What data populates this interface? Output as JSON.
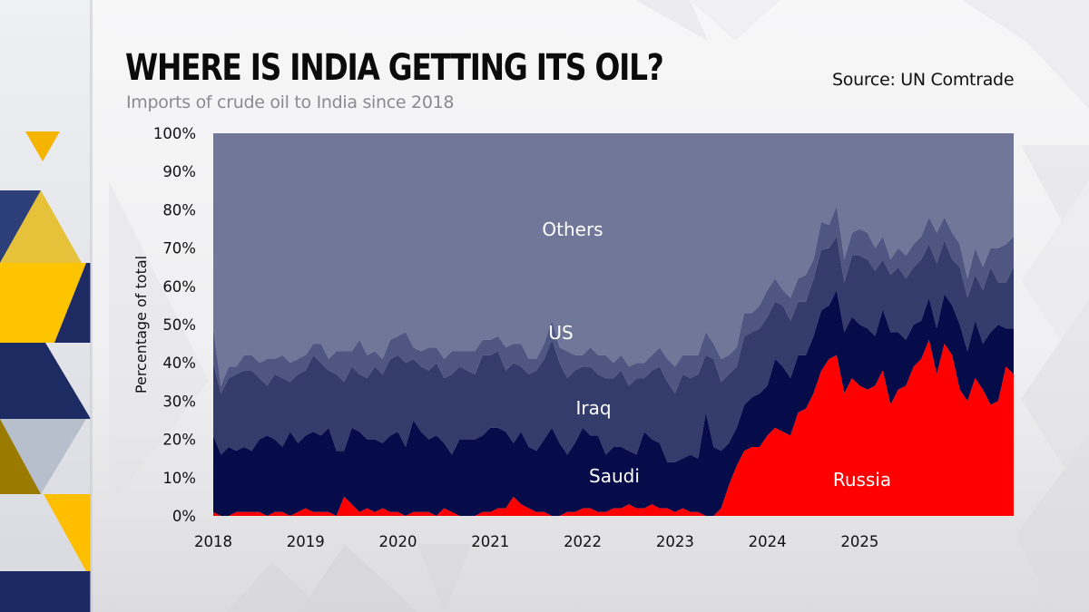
{
  "header": {
    "title": "WHERE IS INDIA GETTING ITS OIL?",
    "subtitle": "Imports of crude oil to India since 2018",
    "source": "Source: UN Comtrade"
  },
  "colors": {
    "Russia": "#ff0000",
    "Saudi": "#060c4a",
    "Iraq": "#343c6c",
    "US": "#4f5682",
    "Others": "#717799",
    "accent_yellow": "#f5b800",
    "accent_navy": "#1c2a60"
  },
  "chart_data": {
    "type": "area",
    "stacked": true,
    "title": "WHERE IS INDIA GETTING ITS OIL?",
    "subtitle": "Imports of crude oil to India since 2018",
    "xlabel": "",
    "ylabel": "Percentage of total",
    "ylim": [
      0,
      100
    ],
    "y_ticks": [
      "0%",
      "10%",
      "20%",
      "30%",
      "40%",
      "50%",
      "60%",
      "70%",
      "80%",
      "90%",
      "100%"
    ],
    "x_ticks": [
      "2018",
      "2019",
      "2020",
      "2021",
      "2022",
      "2023",
      "2024",
      "2025"
    ],
    "x_start": "2018-01",
    "x_end": "2025-06",
    "grid": false,
    "legend": "inline-labels",
    "series_order_bottom_to_top": [
      "Russia",
      "Saudi",
      "Iraq",
      "US",
      "Others"
    ],
    "series": [
      {
        "name": "Russia",
        "values": [
          1,
          0,
          0,
          1,
          1,
          1,
          1,
          0,
          1,
          1,
          0,
          1,
          2,
          1,
          1,
          1,
          0,
          5,
          3,
          1,
          2,
          1,
          2,
          1,
          1,
          0,
          1,
          1,
          1,
          0,
          2,
          1,
          0,
          0,
          0,
          1,
          1,
          2,
          2,
          5,
          3,
          2,
          1,
          1,
          0,
          0,
          1,
          1,
          2,
          2,
          1,
          1,
          2,
          2,
          3,
          2,
          2,
          3,
          2,
          2,
          1,
          2,
          1,
          1,
          0,
          0,
          2,
          8,
          13,
          17,
          18,
          18,
          21,
          23,
          22,
          21,
          27,
          28,
          32,
          36,
          41,
          42,
          32,
          36,
          34,
          33,
          34,
          38,
          29,
          33,
          34,
          39,
          41,
          46,
          37,
          45,
          42,
          33,
          30,
          36,
          33,
          29,
          30,
          39,
          37
        ]
      },
      {
        "name": "Saudi",
        "values": [
          20,
          16,
          18,
          16,
          17,
          16,
          19,
          21,
          19,
          17,
          22,
          18,
          19,
          21,
          20,
          22,
          17,
          12,
          20,
          21,
          18,
          19,
          17,
          20,
          21,
          18,
          24,
          21,
          19,
          21,
          17,
          15,
          20,
          20,
          20,
          20,
          22,
          21,
          20,
          14,
          19,
          16,
          16,
          19,
          23,
          19,
          15,
          18,
          21,
          19,
          20,
          15,
          16,
          16,
          14,
          14,
          20,
          17,
          17,
          12,
          13,
          13,
          15,
          14,
          27,
          18,
          15,
          11,
          10,
          12,
          13,
          14,
          13,
          18,
          17,
          15,
          15,
          14,
          15,
          15,
          14,
          17,
          16,
          16,
          16,
          16,
          13,
          16,
          19,
          15,
          12,
          11,
          10,
          11,
          12,
          13,
          13,
          17,
          13,
          15,
          12,
          19,
          20,
          10,
          12
        ]
      },
      {
        "name": "Iraq",
        "values": [
          19,
          16,
          18,
          20,
          20,
          21,
          16,
          13,
          17,
          18,
          13,
          18,
          17,
          20,
          19,
          15,
          20,
          18,
          16,
          15,
          16,
          19,
          18,
          20,
          20,
          22,
          16,
          17,
          18,
          19,
          17,
          21,
          19,
          18,
          17,
          21,
          19,
          20,
          16,
          21,
          17,
          19,
          21,
          21,
          23,
          21,
          20,
          19,
          16,
          18,
          16,
          20,
          18,
          20,
          17,
          20,
          14,
          18,
          20,
          21,
          18,
          22,
          20,
          22,
          15,
          23,
          18,
          18,
          16,
          18,
          17,
          17,
          18,
          15,
          16,
          15,
          14,
          14,
          15,
          15,
          15,
          14,
          13,
          16,
          18,
          18,
          17,
          13,
          15,
          17,
          16,
          15,
          16,
          14,
          17,
          14,
          12,
          15,
          14,
          12,
          14,
          17,
          11,
          12,
          16
        ]
      },
      {
        "name": "US",
        "values": [
          9,
          2,
          3,
          2,
          4,
          4,
          4,
          7,
          4,
          6,
          5,
          4,
          4,
          3,
          5,
          3,
          6,
          8,
          4,
          9,
          6,
          4,
          4,
          5,
          5,
          8,
          3,
          4,
          6,
          4,
          5,
          6,
          4,
          5,
          6,
          4,
          4,
          4,
          6,
          5,
          6,
          4,
          3,
          4,
          5,
          4,
          7,
          4,
          3,
          5,
          5,
          6,
          4,
          4,
          5,
          4,
          4,
          4,
          5,
          6,
          7,
          5,
          6,
          5,
          6,
          4,
          6,
          5,
          5,
          6,
          5,
          6,
          7,
          6,
          4,
          6,
          6,
          7,
          5,
          7,
          6,
          8,
          6,
          6,
          7,
          7,
          6,
          6,
          4,
          5,
          6,
          6,
          6,
          7,
          8,
          6,
          7,
          6,
          5,
          7,
          6,
          5,
          9,
          10,
          8
        ]
      },
      {
        "name": "Others",
        "values": [
          51,
          66,
          61,
          61,
          58,
          58,
          60,
          59,
          59,
          58,
          60,
          59,
          58,
          55,
          55,
          59,
          57,
          57,
          57,
          54,
          58,
          57,
          59,
          54,
          53,
          52,
          56,
          57,
          56,
          56,
          59,
          57,
          57,
          57,
          57,
          54,
          54,
          53,
          56,
          55,
          55,
          59,
          59,
          55,
          49,
          56,
          57,
          58,
          58,
          56,
          58,
          58,
          60,
          58,
          61,
          60,
          60,
          58,
          56,
          59,
          61,
          58,
          58,
          58,
          52,
          55,
          59,
          58,
          56,
          47,
          47,
          45,
          41,
          38,
          41,
          43,
          38,
          37,
          33,
          22,
          24,
          19,
          33,
          26,
          25,
          26,
          30,
          27,
          33,
          30,
          32,
          29,
          27,
          22,
          26,
          22,
          26,
          29,
          38,
          30,
          35,
          30,
          30,
          29,
          27
        ]
      }
    ],
    "inline_labels": [
      {
        "series": "Others",
        "text": "Others"
      },
      {
        "series": "US",
        "text": "US"
      },
      {
        "series": "Iraq",
        "text": "Iraq"
      },
      {
        "series": "Saudi",
        "text": "Saudi"
      },
      {
        "series": "Russia",
        "text": "Russia"
      }
    ]
  }
}
